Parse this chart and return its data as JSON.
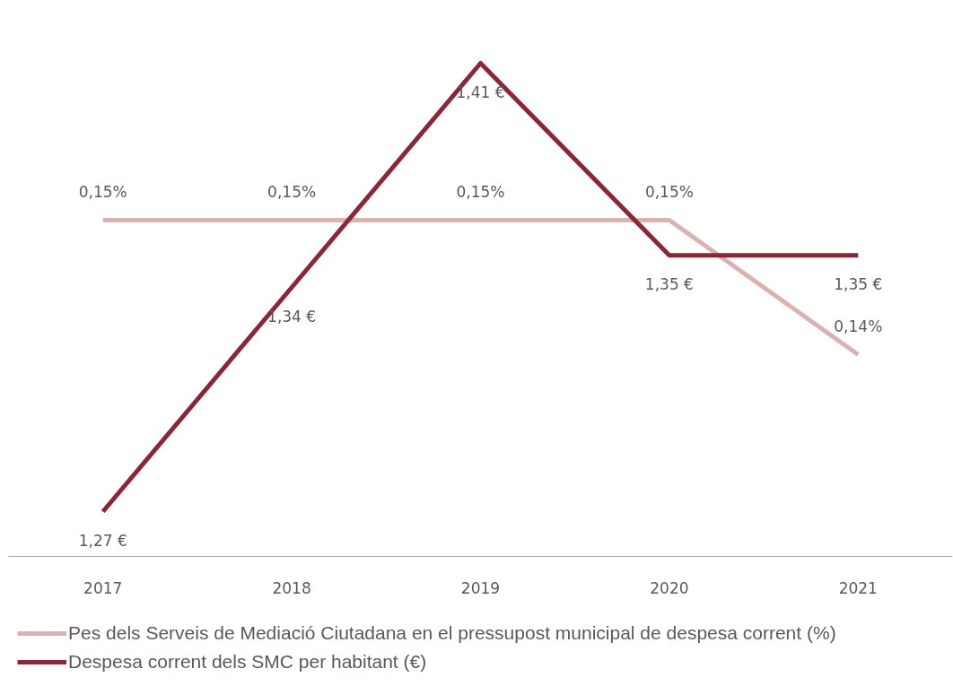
{
  "chart_data": {
    "type": "line",
    "categories": [
      "2017",
      "2018",
      "2019",
      "2020",
      "2021"
    ],
    "series": [
      {
        "name": "Pes dels Serveis de Mediació Ciutadana en el pressupost municipal de despesa corrent (%)",
        "color": "#dbb2b2",
        "values": [
          0.15,
          0.15,
          0.15,
          0.15,
          0.14
        ],
        "value_labels": [
          "0,15%",
          "0,15%",
          "0,15%",
          "0,15%",
          "0,14%"
        ]
      },
      {
        "name": "Despesa corrent dels SMC per habitant (€)",
        "color": "#8c2535",
        "axis": "y2",
        "values": [
          1.27,
          1.34,
          1.41,
          1.35,
          1.35
        ],
        "value_labels": [
          "1,27 €",
          "1,34 €",
          "1,41 €",
          "1,35 €",
          "1,35 €"
        ]
      }
    ],
    "tick_labels": "x",
    "grid": false,
    "legend": "bottom",
    "marker": "none",
    "line_style": "solid"
  }
}
